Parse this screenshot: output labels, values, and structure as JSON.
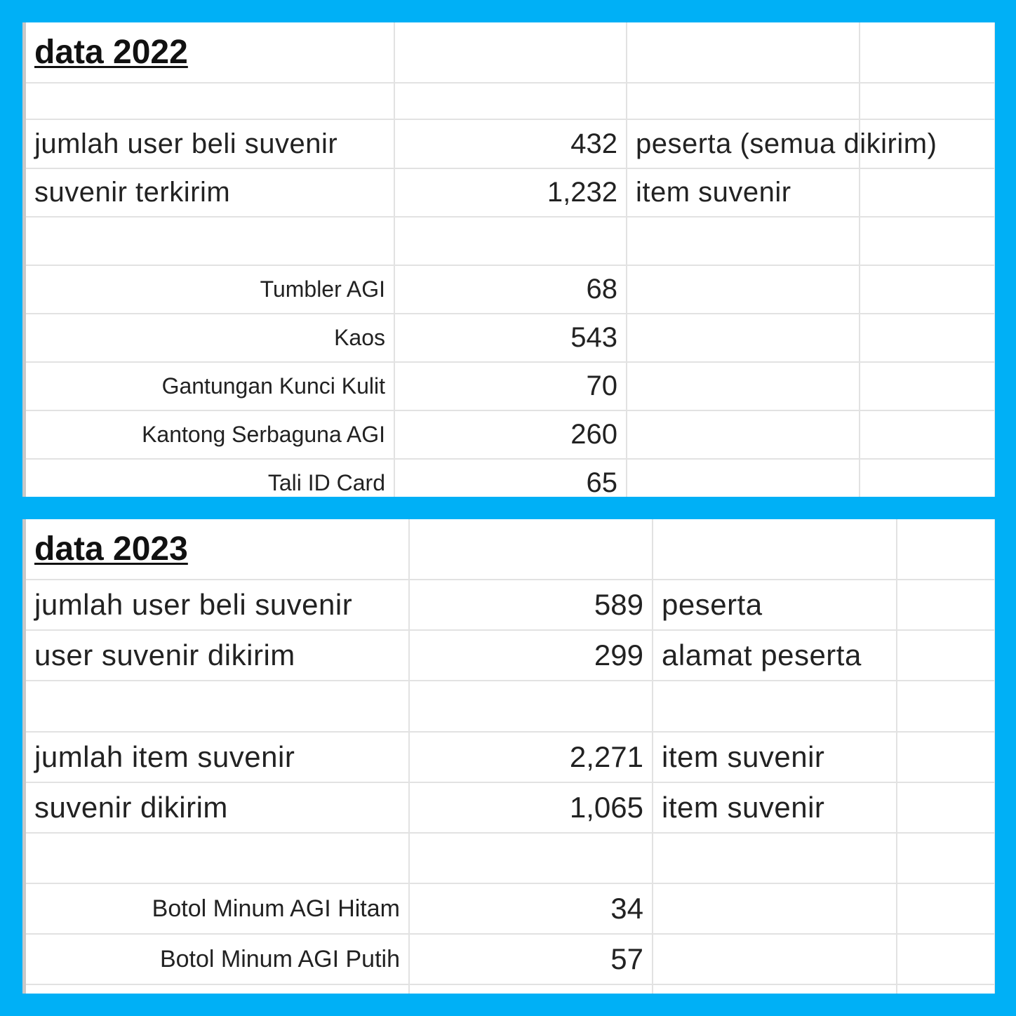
{
  "background_color": "#00b0f6",
  "panels": [
    {
      "title": "data 2022",
      "rows": [
        {
          "type": "blank"
        },
        {
          "type": "main",
          "label": "jumlah user beli suvenir",
          "value": "432",
          "unit": "peserta (semua dikirim)"
        },
        {
          "type": "main",
          "label": "suvenir terkirim",
          "value": "1,232",
          "unit": "item suvenir"
        },
        {
          "type": "blank"
        },
        {
          "type": "item",
          "label": "Tumbler AGI",
          "value": "68"
        },
        {
          "type": "item",
          "label": "Kaos",
          "value": "543"
        },
        {
          "type": "item",
          "label": "Gantungan Kunci Kulit",
          "value": "70"
        },
        {
          "type": "item",
          "label": "Kantong Serbaguna AGI",
          "value": "260"
        },
        {
          "type": "item",
          "label": "Tali ID Card",
          "value": "65"
        }
      ]
    },
    {
      "title": "data 2023",
      "rows": [
        {
          "type": "main",
          "label": "jumlah user beli suvenir",
          "value": "589",
          "unit": "peserta"
        },
        {
          "type": "main",
          "label": "user suvenir dikirim",
          "value": "299",
          "unit": "alamat peserta"
        },
        {
          "type": "blank"
        },
        {
          "type": "main",
          "label": "jumlah item suvenir",
          "value": "2,271",
          "unit": "item suvenir"
        },
        {
          "type": "main",
          "label": "suvenir dikirim",
          "value": "1,065",
          "unit": "item suvenir"
        },
        {
          "type": "blank"
        },
        {
          "type": "item",
          "label": "Botol Minum AGI Hitam",
          "value": "34"
        },
        {
          "type": "item",
          "label": "Botol Minum AGI Putih",
          "value": "57"
        },
        {
          "type": "blank"
        }
      ]
    }
  ]
}
